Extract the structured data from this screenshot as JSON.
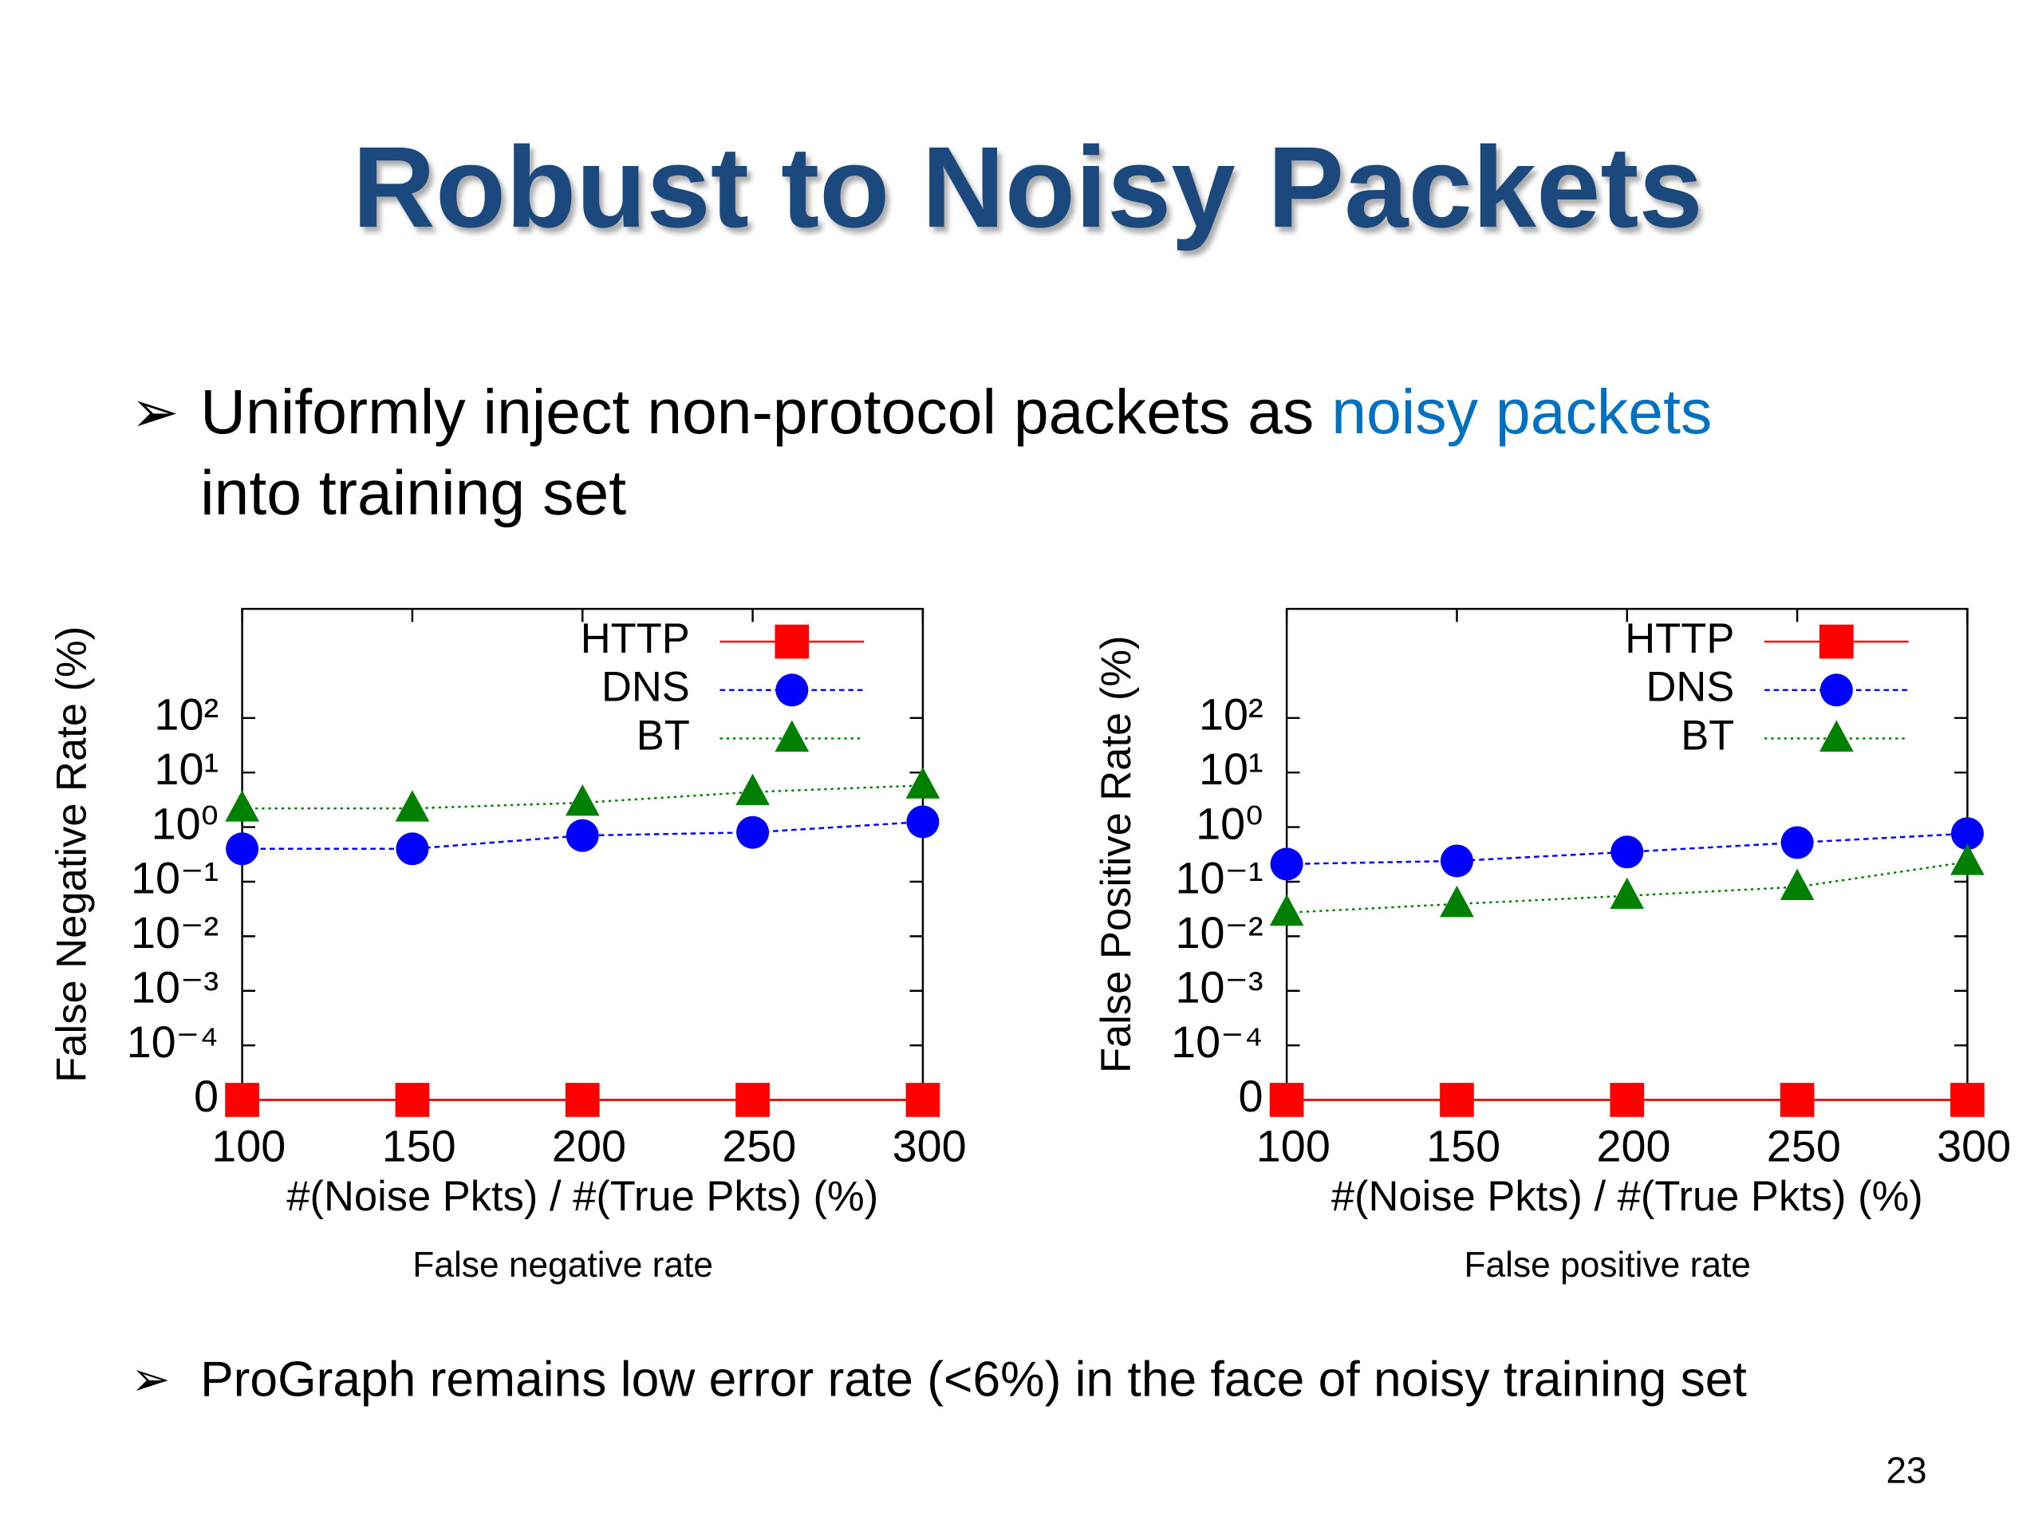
{
  "title": "Robust to Noisy Packets",
  "bullets": [
    {
      "text": "Uniformly inject non-protocol packets as",
      "highlight": "noisy packets",
      "continuation": "into training set"
    },
    {
      "text": "ProGraph remains low error rate (<6%) in the face of noisy training set"
    }
  ],
  "page_number": "23",
  "chart_data": [
    {
      "type": "line",
      "caption": "False negative rate",
      "ylabel": "False Negative Rate (%)",
      "xlabel": "#(Noise Pkts) / #(True Pkts) (%)",
      "x": [
        100,
        150,
        200,
        250,
        300
      ],
      "xlim": [
        100,
        300
      ],
      "xticks": [
        100,
        150,
        200,
        250,
        300
      ],
      "ylim": [
        0,
        10000
      ],
      "log_scale": true,
      "yticks": [
        0,
        {
          "value": 0.0001,
          "label": "10⁻⁴"
        },
        {
          "value": 0.001,
          "label": "10⁻³"
        },
        {
          "value": 0.01,
          "label": "10⁻²"
        },
        {
          "value": 0.1,
          "label": "10⁻¹"
        },
        {
          "value": 1,
          "label": "10⁰"
        },
        {
          "value": 10,
          "label": "10¹"
        },
        {
          "value": 100,
          "label": "10²"
        }
      ],
      "legend": "top-right",
      "series": [
        {
          "name": "HTTP",
          "color": "#ff0000",
          "marker": "square",
          "dash": "solid",
          "values": [
            0,
            0,
            0,
            0,
            0
          ]
        },
        {
          "name": "DNS",
          "color": "#0000ff",
          "marker": "circle",
          "dash": "dashed",
          "values": [
            0.4,
            0.4,
            0.7,
            0.8,
            1.25
          ]
        },
        {
          "name": "BT",
          "color": "#008000",
          "marker": "triangle",
          "dash": "dotted",
          "values": [
            2.2,
            2.2,
            2.8,
            4.4,
            5.8
          ]
        }
      ]
    },
    {
      "type": "line",
      "caption": "False positive rate",
      "ylabel": "False Positive Rate (%)",
      "xlabel": "#(Noise Pkts) / #(True Pkts) (%)",
      "x": [
        100,
        150,
        200,
        250,
        300
      ],
      "xlim": [
        100,
        300
      ],
      "xticks": [
        100,
        150,
        200,
        250,
        300
      ],
      "ylim": [
        0,
        10000
      ],
      "log_scale": true,
      "yticks": [
        0,
        {
          "value": 0.0001,
          "label": "10⁻⁴"
        },
        {
          "value": 0.001,
          "label": "10⁻³"
        },
        {
          "value": 0.01,
          "label": "10⁻²"
        },
        {
          "value": 0.1,
          "label": "10⁻¹"
        },
        {
          "value": 1,
          "label": "10⁰"
        },
        {
          "value": 10,
          "label": "10¹"
        },
        {
          "value": 100,
          "label": "10²"
        }
      ],
      "legend": "top-right",
      "series": [
        {
          "name": "HTTP",
          "color": "#ff0000",
          "marker": "square",
          "dash": "solid",
          "values": [
            0,
            0,
            0,
            0,
            0
          ]
        },
        {
          "name": "DNS",
          "color": "#0000ff",
          "marker": "circle",
          "dash": "dashed",
          "values": [
            0.21,
            0.24,
            0.35,
            0.52,
            0.76
          ]
        },
        {
          "name": "BT",
          "color": "#008000",
          "marker": "triangle",
          "dash": "dotted",
          "values": [
            0.027,
            0.039,
            0.055,
            0.08,
            0.23
          ]
        }
      ]
    }
  ]
}
